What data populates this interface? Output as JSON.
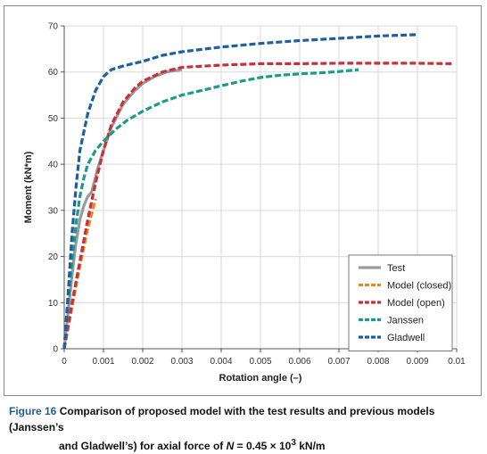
{
  "chart_data": {
    "type": "line",
    "xlabel": "Rotation angle (–)",
    "ylabel": "Moment (kN*m)",
    "xlim": [
      0,
      0.01
    ],
    "ylim": [
      0,
      70
    ],
    "x_ticks": [
      "0",
      "0.001",
      "0.002",
      "0.003",
      "0.004",
      "0.005",
      "0.006",
      "0.007",
      "0.008",
      "0.009",
      "0.01"
    ],
    "y_ticks": [
      "0",
      "10",
      "20",
      "30",
      "40",
      "50",
      "60",
      "70"
    ],
    "grid": true,
    "legend_position": "bottom-right",
    "series": [
      {
        "name": "Test",
        "color": "#9a9a9a",
        "dash": "solid",
        "points": [
          [
            0,
            0
          ],
          [
            0.0001,
            8
          ],
          [
            0.0002,
            16
          ],
          [
            0.0003,
            23
          ],
          [
            0.0004,
            28
          ],
          [
            0.0005,
            31
          ],
          [
            0.0006,
            33
          ],
          [
            0.0007,
            34
          ],
          [
            0.00085,
            39
          ],
          [
            0.001,
            43
          ],
          [
            0.0012,
            48
          ],
          [
            0.0015,
            53
          ],
          [
            0.0018,
            56
          ],
          [
            0.002,
            57.5
          ],
          [
            0.0023,
            59
          ],
          [
            0.0026,
            60
          ],
          [
            0.003,
            60.5
          ]
        ]
      },
      {
        "name": "Model (closed)",
        "color": "#e08a2c",
        "dash": "dashed",
        "points": [
          [
            0,
            0
          ],
          [
            0.0002,
            9
          ],
          [
            0.0004,
            18
          ],
          [
            0.0006,
            26
          ],
          [
            0.0008,
            32.5
          ]
        ]
      },
      {
        "name": "Model (open)",
        "color": "#c6313b",
        "dash": "dashed",
        "points": [
          [
            0,
            0
          ],
          [
            0.0002,
            10
          ],
          [
            0.0004,
            19
          ],
          [
            0.0006,
            28
          ],
          [
            0.0008,
            36
          ],
          [
            0.001,
            43
          ],
          [
            0.0012,
            48.5
          ],
          [
            0.0015,
            53.5
          ],
          [
            0.0018,
            56.5
          ],
          [
            0.002,
            58
          ],
          [
            0.0025,
            60
          ],
          [
            0.003,
            61
          ],
          [
            0.004,
            61.5
          ],
          [
            0.005,
            61.8
          ],
          [
            0.006,
            61.8
          ],
          [
            0.007,
            61.9
          ],
          [
            0.008,
            61.9
          ],
          [
            0.009,
            61.9
          ],
          [
            0.0099,
            61.8
          ]
        ]
      },
      {
        "name": "Janssen",
        "color": "#1e9a86",
        "dash": "dashed",
        "points": [
          [
            0,
            0
          ],
          [
            0.0001,
            10
          ],
          [
            0.0002,
            19
          ],
          [
            0.0003,
            27
          ],
          [
            0.0004,
            33
          ],
          [
            0.0005,
            37
          ],
          [
            0.0006,
            40
          ],
          [
            0.0008,
            43
          ],
          [
            0.001,
            45
          ],
          [
            0.0013,
            47.5
          ],
          [
            0.0016,
            49.5
          ],
          [
            0.002,
            51.5
          ],
          [
            0.0025,
            53.5
          ],
          [
            0.003,
            55
          ],
          [
            0.0035,
            56
          ],
          [
            0.004,
            57
          ],
          [
            0.0045,
            58
          ],
          [
            0.005,
            58.8
          ],
          [
            0.0055,
            59.3
          ],
          [
            0.006,
            59.6
          ],
          [
            0.0065,
            59.8
          ],
          [
            0.007,
            60.1
          ],
          [
            0.0075,
            60.5
          ]
        ]
      },
      {
        "name": "Gladwell",
        "color": "#1f5f9f",
        "dash": "dashed",
        "points": [
          [
            0,
            0
          ],
          [
            0.0001,
            12
          ],
          [
            0.0002,
            25
          ],
          [
            0.0003,
            35
          ],
          [
            0.0004,
            43
          ],
          [
            0.0006,
            51
          ],
          [
            0.0008,
            56
          ],
          [
            0.001,
            59
          ],
          [
            0.0012,
            60.5
          ],
          [
            0.0015,
            61.3
          ],
          [
            0.002,
            62.3
          ],
          [
            0.0025,
            63.6
          ],
          [
            0.003,
            64.4
          ],
          [
            0.004,
            65.4
          ],
          [
            0.005,
            66.2
          ],
          [
            0.006,
            66.8
          ],
          [
            0.007,
            67.3
          ],
          [
            0.008,
            67.8
          ],
          [
            0.009,
            68.1
          ]
        ]
      }
    ]
  },
  "caption": {
    "label": "Figure 16",
    "line1": " Comparison of proposed model with the test results and previous models (Janssen’s",
    "line2_pre": "and Gladwell’s) for axial force of ",
    "symbol": "N",
    "line2_value": " = 0.45 × 10",
    "exponent": "3",
    "unit": " kN/m"
  }
}
